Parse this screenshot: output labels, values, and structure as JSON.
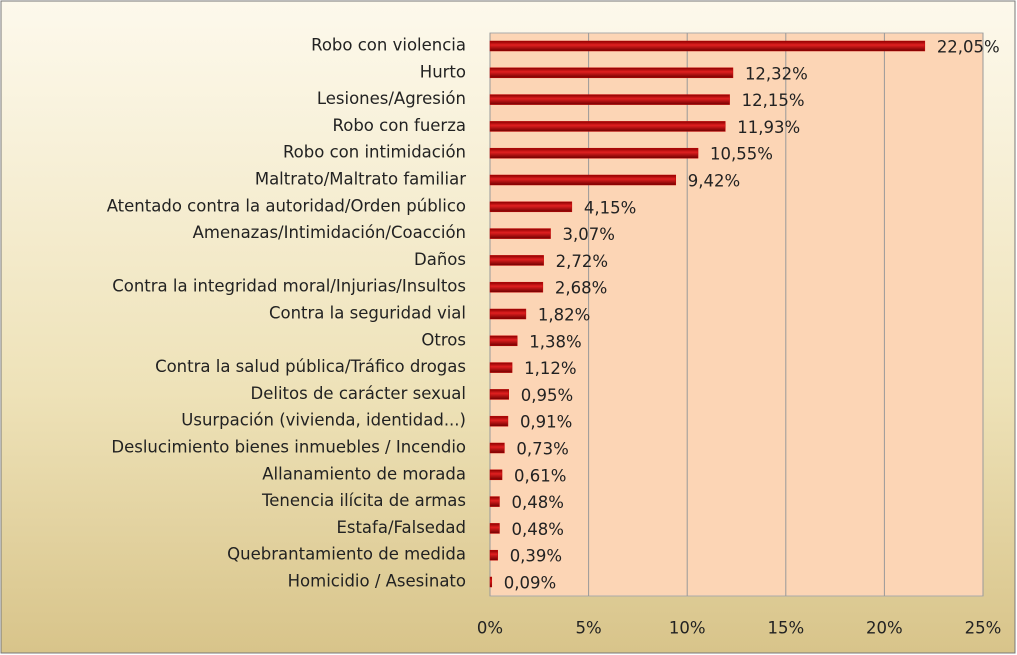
{
  "chart_data": {
    "type": "hbar",
    "categories": [
      "Robo con violencia",
      "Hurto",
      "Lesiones/Agresión",
      "Robo con fuerza",
      "Robo con intimidación",
      "Maltrato/Maltrato familiar",
      "Atentado contra la autoridad/Orden público",
      "Amenazas/Intimidación/Coacción",
      "Daños",
      "Contra la integridad moral/Injurias/Insultos",
      "Contra la seguridad vial",
      "Otros",
      "Contra la salud pública/Tráfico drogas",
      "Delitos de carácter sexual",
      "Usurpación (vivienda, identidad...)",
      "Deslucimiento bienes inmuebles / Incendio",
      "Allanamiento de morada",
      "Tenencia ilícita de armas",
      "Estafa/Falsedad",
      "Quebrantamiento de medida",
      "Homicidio / Asesinato"
    ],
    "values": [
      22.05,
      12.32,
      12.15,
      11.93,
      10.55,
      9.42,
      4.15,
      3.07,
      2.72,
      2.68,
      1.82,
      1.38,
      1.12,
      0.95,
      0.91,
      0.73,
      0.61,
      0.48,
      0.48,
      0.39,
      0.09
    ],
    "value_labels": [
      "22,05%",
      "12,32%",
      "12,15%",
      "11,93%",
      "10,55%",
      "9,42%",
      "4,15%",
      "3,07%",
      "2,72%",
      "2,68%",
      "1,82%",
      "1,38%",
      "1,12%",
      "0,95%",
      "0,91%",
      "0,73%",
      "0,61%",
      "0,48%",
      "0,48%",
      "0,39%",
      "0,09%"
    ],
    "color": "#c00000",
    "xlim": [
      0,
      25
    ],
    "xticks": [
      {
        "value": 0,
        "label": "0%"
      },
      {
        "value": 5,
        "label": "5%"
      },
      {
        "value": 10,
        "label": "10%"
      },
      {
        "value": 15,
        "label": "15%"
      },
      {
        "value": 20,
        "label": "20%"
      },
      {
        "value": 25,
        "label": "25%"
      }
    ],
    "grid": true
  }
}
